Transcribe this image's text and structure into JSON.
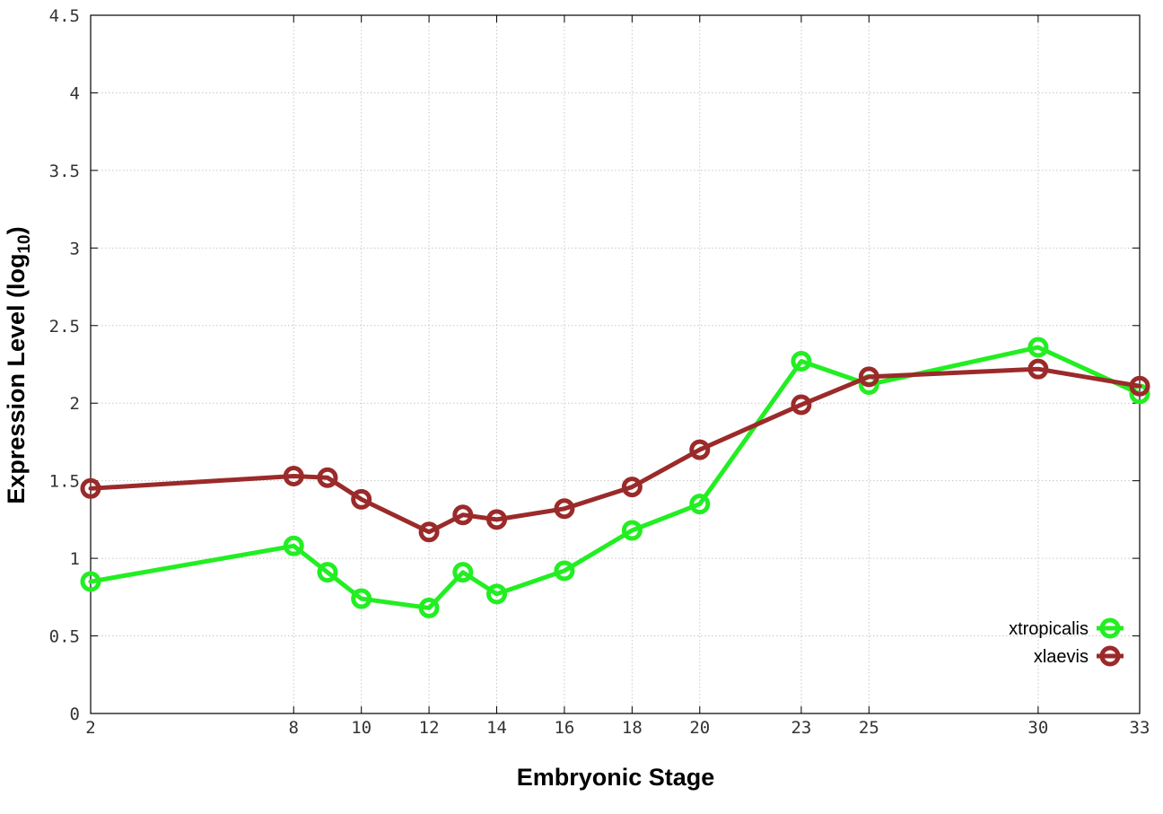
{
  "chart_data": {
    "type": "line",
    "title": "",
    "xlabel": "Embryonic Stage",
    "ylabel_main": "Expression Level (log",
    "ylabel_sub": "10",
    "ylabel_close": ")",
    "x": [
      2,
      8,
      9,
      10,
      12,
      13,
      14,
      16,
      18,
      20,
      23,
      25,
      30,
      33
    ],
    "xticks": [
      2,
      8,
      10,
      12,
      14,
      16,
      18,
      20,
      23,
      25,
      30,
      33
    ],
    "xlim": [
      2,
      33
    ],
    "ylim": [
      0,
      4.5
    ],
    "yticks": [
      "0",
      "0.5",
      "1",
      "1.5",
      "2",
      "2.5",
      "3",
      "3.5",
      "4",
      "4.5"
    ],
    "grid": true,
    "legend_position": "bottom-right",
    "series": [
      {
        "name": "xtropicalis",
        "color": "#22ee22",
        "values": [
          0.85,
          1.08,
          0.91,
          0.74,
          0.68,
          0.91,
          0.77,
          0.92,
          1.18,
          1.35,
          2.27,
          2.12,
          2.36,
          2.06
        ]
      },
      {
        "name": "xlaevis",
        "color": "#9b2a2a",
        "values": [
          1.45,
          1.53,
          1.52,
          1.38,
          1.17,
          1.28,
          1.25,
          1.32,
          1.46,
          1.7,
          1.99,
          2.17,
          2.22,
          2.11
        ]
      }
    ]
  }
}
